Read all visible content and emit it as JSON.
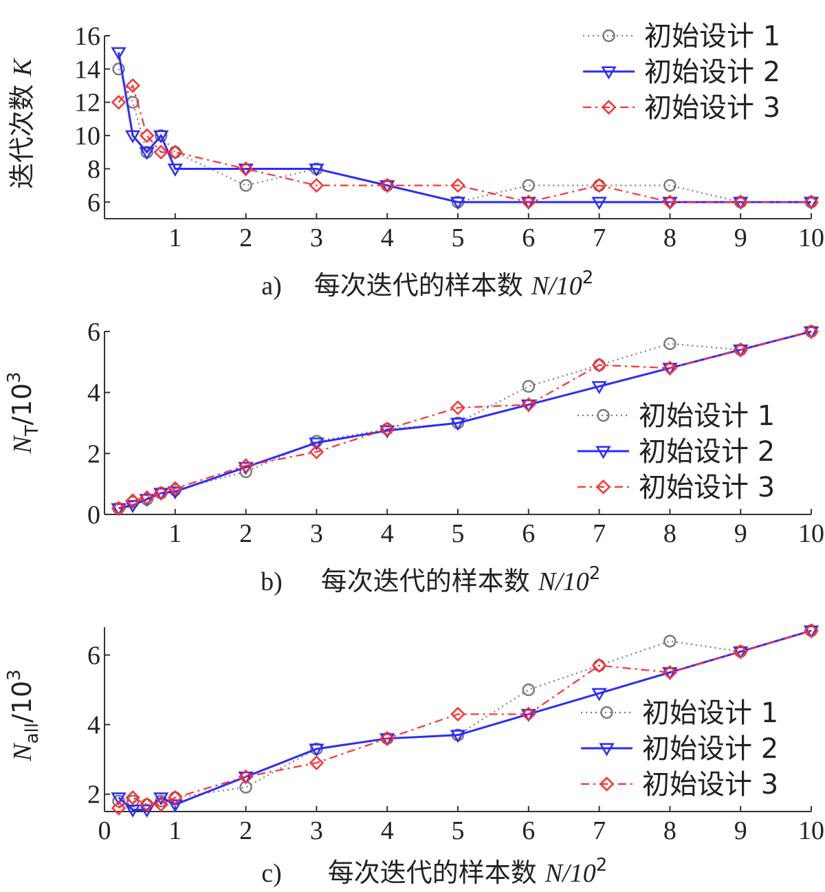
{
  "chart_data": [
    {
      "type": "line",
      "panel_label": "a)",
      "xlabel_text": "每次迭代的样本数",
      "xlabel_var": "N",
      "xlabel_unit": "/10",
      "xlabel_exp": "2",
      "ylabel_text": "迭代次数",
      "ylabel_var": "K",
      "ylabel_sub": "",
      "ylabel_unit": "",
      "ylabel_exp": "",
      "xlim": [
        0,
        10
      ],
      "ylim": [
        5,
        16
      ],
      "xticks": [
        1,
        2,
        3,
        4,
        5,
        6,
        7,
        8,
        9,
        10
      ],
      "yticks": [
        6,
        8,
        10,
        12,
        14,
        16
      ],
      "legend_position": "top-right",
      "series": [
        {
          "name": "初始设计 1",
          "color": "#7a7a7a",
          "marker": "circle",
          "line": "dotted",
          "x": [
            0.2,
            0.4,
            0.6,
            0.8,
            1,
            2,
            3,
            4,
            5,
            6,
            7,
            8,
            9,
            10
          ],
          "y": [
            14,
            12,
            9,
            10,
            9,
            7,
            8,
            7,
            6,
            7,
            7,
            7,
            6,
            6
          ]
        },
        {
          "name": "初始设计 2",
          "color": "#2b2bff",
          "marker": "triangle",
          "line": "solid",
          "x": [
            0.2,
            0.4,
            0.6,
            0.8,
            1,
            2,
            3,
            4,
            5,
            6,
            7,
            8,
            9,
            10
          ],
          "y": [
            15,
            10,
            9,
            10,
            8,
            8,
            8,
            7,
            6,
            6,
            6,
            6,
            6,
            6
          ]
        },
        {
          "name": "初始设计 3",
          "color": "#ff3030",
          "marker": "diamond",
          "line": "dashdot",
          "x": [
            0.2,
            0.4,
            0.6,
            0.8,
            1,
            2,
            3,
            4,
            5,
            6,
            7,
            8,
            9,
            10
          ],
          "y": [
            12,
            13,
            10,
            9,
            9,
            8,
            7,
            7,
            7,
            6,
            7,
            6,
            6,
            6
          ]
        }
      ]
    },
    {
      "type": "line",
      "panel_label": "b)",
      "xlabel_text": "每次迭代的样本数",
      "xlabel_var": "N",
      "xlabel_unit": "/10",
      "xlabel_exp": "2",
      "ylabel_text": "",
      "ylabel_var": "N",
      "ylabel_sub": "T",
      "ylabel_unit": "/10",
      "ylabel_exp": "3",
      "xlim": [
        0,
        10
      ],
      "ylim": [
        0,
        6
      ],
      "xticks": [
        1,
        2,
        3,
        4,
        5,
        6,
        7,
        8,
        9,
        10
      ],
      "yticks": [
        0,
        2,
        4,
        6
      ],
      "legend_position": "center-right",
      "series": [
        {
          "name": "初始设计 1",
          "color": "#7a7a7a",
          "marker": "circle",
          "line": "dotted",
          "x": [
            0.2,
            0.4,
            0.6,
            0.8,
            1,
            2,
            3,
            4,
            5,
            6,
            7,
            8,
            9,
            10
          ],
          "y": [
            0.2,
            0.4,
            0.5,
            0.7,
            0.8,
            1.4,
            2.4,
            2.8,
            3.0,
            4.2,
            4.9,
            5.6,
            5.4,
            6.0
          ]
        },
        {
          "name": "初始设计 2",
          "color": "#2b2bff",
          "marker": "triangle",
          "line": "solid",
          "x": [
            0.2,
            0.4,
            0.6,
            0.8,
            1,
            2,
            3,
            4,
            5,
            6,
            7,
            8,
            9,
            10
          ],
          "y": [
            0.2,
            0.3,
            0.5,
            0.7,
            0.75,
            1.55,
            2.35,
            2.75,
            3.0,
            3.6,
            4.2,
            4.8,
            5.4,
            6.0
          ]
        },
        {
          "name": "初始设计 3",
          "color": "#ff3030",
          "marker": "diamond",
          "line": "dashdot",
          "x": [
            0.2,
            0.4,
            0.6,
            0.8,
            1,
            2,
            3,
            4,
            5,
            6,
            7,
            8,
            9,
            10
          ],
          "y": [
            0.2,
            0.45,
            0.55,
            0.7,
            0.85,
            1.6,
            2.05,
            2.8,
            3.5,
            3.6,
            4.9,
            4.8,
            5.4,
            6.0
          ]
        }
      ]
    },
    {
      "type": "line",
      "panel_label": "c)",
      "xlabel_text": "每次迭代的样本数",
      "xlabel_var": "N",
      "xlabel_unit": "/10",
      "xlabel_exp": "2",
      "ylabel_text": "",
      "ylabel_var": "N",
      "ylabel_sub": "all",
      "ylabel_unit": "/10",
      "ylabel_exp": "3",
      "xlim": [
        0,
        10
      ],
      "ylim": [
        1.5,
        6.8
      ],
      "xticks": [
        0,
        1,
        2,
        3,
        4,
        5,
        6,
        7,
        8,
        9,
        10
      ],
      "yticks": [
        2,
        4,
        6
      ],
      "legend_position": "center-right",
      "series": [
        {
          "name": "初始设计 1",
          "color": "#7a7a7a",
          "marker": "circle",
          "line": "dotted",
          "x": [
            0.2,
            0.4,
            0.6,
            0.8,
            1,
            2,
            3,
            4,
            5,
            6,
            7,
            8,
            9,
            10
          ],
          "y": [
            1.8,
            1.8,
            1.7,
            1.8,
            1.9,
            2.2,
            3.3,
            3.6,
            3.7,
            5.0,
            5.7,
            6.4,
            6.1,
            6.7
          ]
        },
        {
          "name": "初始设计 2",
          "color": "#2b2bff",
          "marker": "triangle",
          "line": "solid",
          "x": [
            0.2,
            0.4,
            0.6,
            0.8,
            1,
            2,
            3,
            4,
            5,
            6,
            7,
            8,
            9,
            10
          ],
          "y": [
            1.9,
            1.55,
            1.55,
            1.9,
            1.7,
            2.5,
            3.3,
            3.6,
            3.7,
            4.3,
            4.9,
            5.5,
            6.1,
            6.7
          ]
        },
        {
          "name": "初始设计 3",
          "color": "#ff3030",
          "marker": "diamond",
          "line": "dashdot",
          "x": [
            0.2,
            0.4,
            0.6,
            0.8,
            1,
            2,
            3,
            4,
            5,
            6,
            7,
            8,
            9,
            10
          ],
          "y": [
            1.6,
            1.9,
            1.7,
            1.7,
            1.9,
            2.5,
            2.9,
            3.6,
            4.3,
            4.3,
            5.7,
            5.5,
            6.1,
            6.7
          ]
        }
      ]
    }
  ]
}
